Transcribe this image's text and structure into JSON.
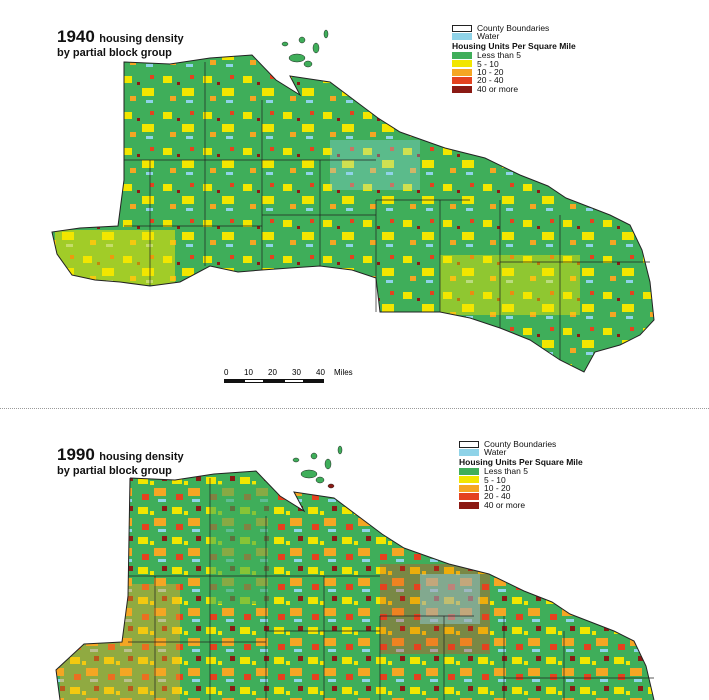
{
  "panels": [
    {
      "year": "1940",
      "title_rest": "housing density",
      "subtitle": "by partial block group"
    },
    {
      "year": "1990",
      "title_rest": "housing density",
      "subtitle": "by partial block group"
    }
  ],
  "legend": {
    "county_label": "County Boundaries",
    "water_label": "Water",
    "heading": "Housing Units Per Square Mile",
    "classes": [
      {
        "label": "Less than 5",
        "color": "#3fae5a"
      },
      {
        "label": "5 - 10",
        "color": "#f2e600"
      },
      {
        "label": "10 - 20",
        "color": "#f5a623"
      },
      {
        "label": "20 - 40",
        "color": "#e4421f"
      },
      {
        "label": "40 or more",
        "color": "#8b1a14"
      }
    ],
    "water_color": "#8fd3e8"
  },
  "scale": {
    "ticks": [
      "0",
      "10",
      "20",
      "30",
      "40"
    ],
    "unit": "Miles"
  }
}
